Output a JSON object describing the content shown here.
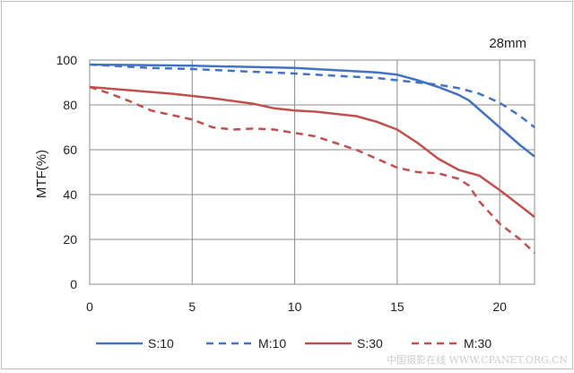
{
  "chart_data": {
    "type": "line",
    "title": "",
    "annotation": "28mm",
    "xlabel": "",
    "ylabel": "MTF(%)",
    "xlim": [
      0,
      21.7
    ],
    "ylim": [
      0,
      100
    ],
    "xticks": [
      0,
      5,
      10,
      15,
      20
    ],
    "yticks": [
      0,
      20,
      40,
      60,
      80,
      100
    ],
    "grid": true,
    "legend_position": "bottom",
    "series": [
      {
        "name": "S:10",
        "color": "#4472C4",
        "dash": "solid",
        "x": [
          0,
          5,
          10,
          12,
          14,
          15,
          16,
          17,
          18,
          18.5,
          19,
          20,
          21,
          21.7
        ],
        "y": [
          98,
          97.5,
          96.5,
          95.5,
          94.5,
          93.5,
          91,
          88,
          84.5,
          82,
          78,
          70,
          62,
          57
        ]
      },
      {
        "name": "M:10",
        "color": "#4472C4",
        "dash": "dashed",
        "x": [
          0,
          3,
          5,
          10,
          14,
          16,
          17,
          18,
          19,
          20,
          21,
          21.7
        ],
        "y": [
          98,
          96.5,
          96,
          94,
          92,
          90,
          89,
          87.5,
          85,
          81,
          75,
          70
        ]
      },
      {
        "name": "S:30",
        "color": "#C0504D",
        "dash": "solid",
        "x": [
          0,
          2,
          4,
          6,
          8,
          9,
          10,
          11,
          12,
          13,
          14,
          15,
          16,
          17,
          18,
          19,
          20,
          21,
          21.7
        ],
        "y": [
          88,
          86.5,
          85,
          83,
          80.5,
          78.5,
          77.5,
          77,
          76,
          75,
          72.5,
          69,
          63,
          56,
          51,
          48.5,
          42,
          35,
          30
        ]
      },
      {
        "name": "M:30",
        "color": "#C0504D",
        "dash": "dashed",
        "x": [
          0,
          1,
          2,
          3,
          5,
          6,
          7,
          8,
          9,
          10,
          11,
          12,
          13,
          14,
          15,
          16,
          17,
          18,
          18.5,
          19,
          20,
          21,
          21.7
        ],
        "y": [
          88,
          85,
          81.5,
          77.5,
          73.5,
          70,
          69,
          69.5,
          69,
          67.5,
          66,
          63,
          60,
          56,
          52,
          50,
          49.5,
          47,
          44,
          37,
          27,
          20,
          14
        ]
      }
    ]
  },
  "watermark": "中国摄影在线 WWW.CPANET.ORG.CN"
}
